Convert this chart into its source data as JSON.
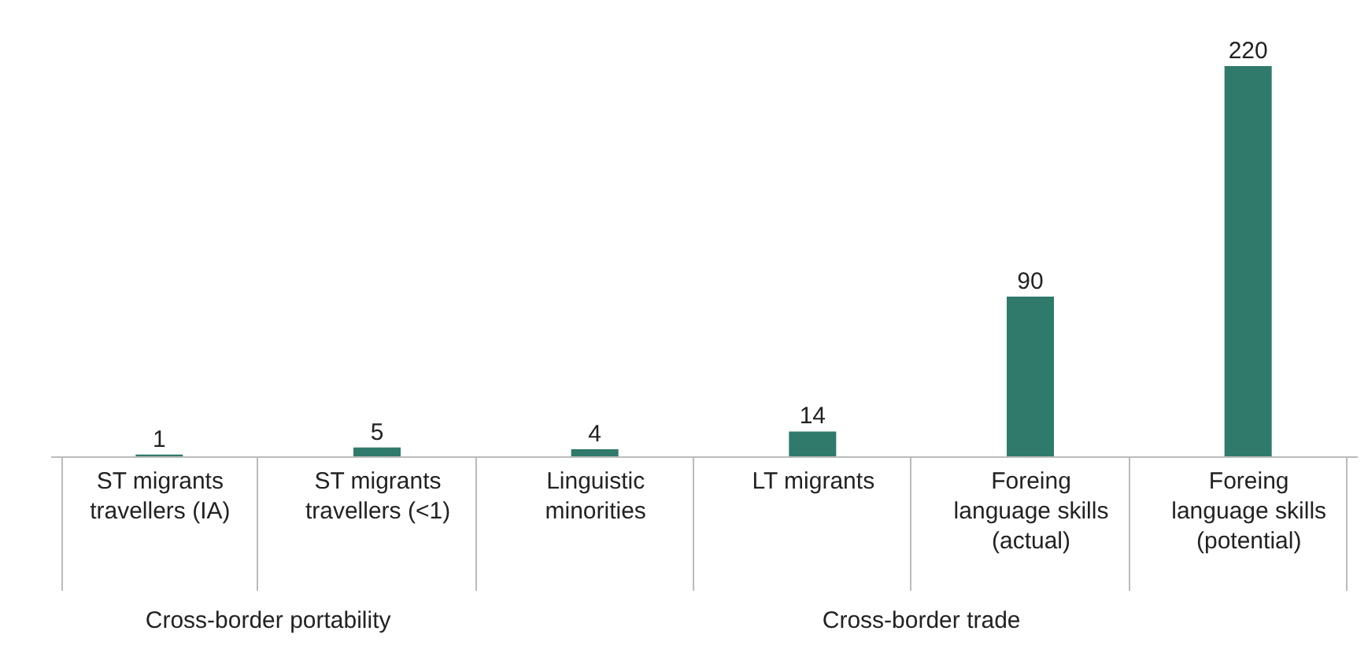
{
  "chart_data": {
    "type": "bar",
    "categories": [
      "ST migrants travellers (IA)",
      "ST migrants travellers (<1)",
      "Linguistic minorities",
      "LT migrants",
      "Foreing language skills (actual)",
      "Foreing language skills (potential)"
    ],
    "values": [
      1,
      5,
      4,
      14,
      90,
      220
    ],
    "color": "#2f7a6b",
    "data_labels": true,
    "annotations": [
      "Cross-border portability",
      "Cross-border trade"
    ]
  }
}
